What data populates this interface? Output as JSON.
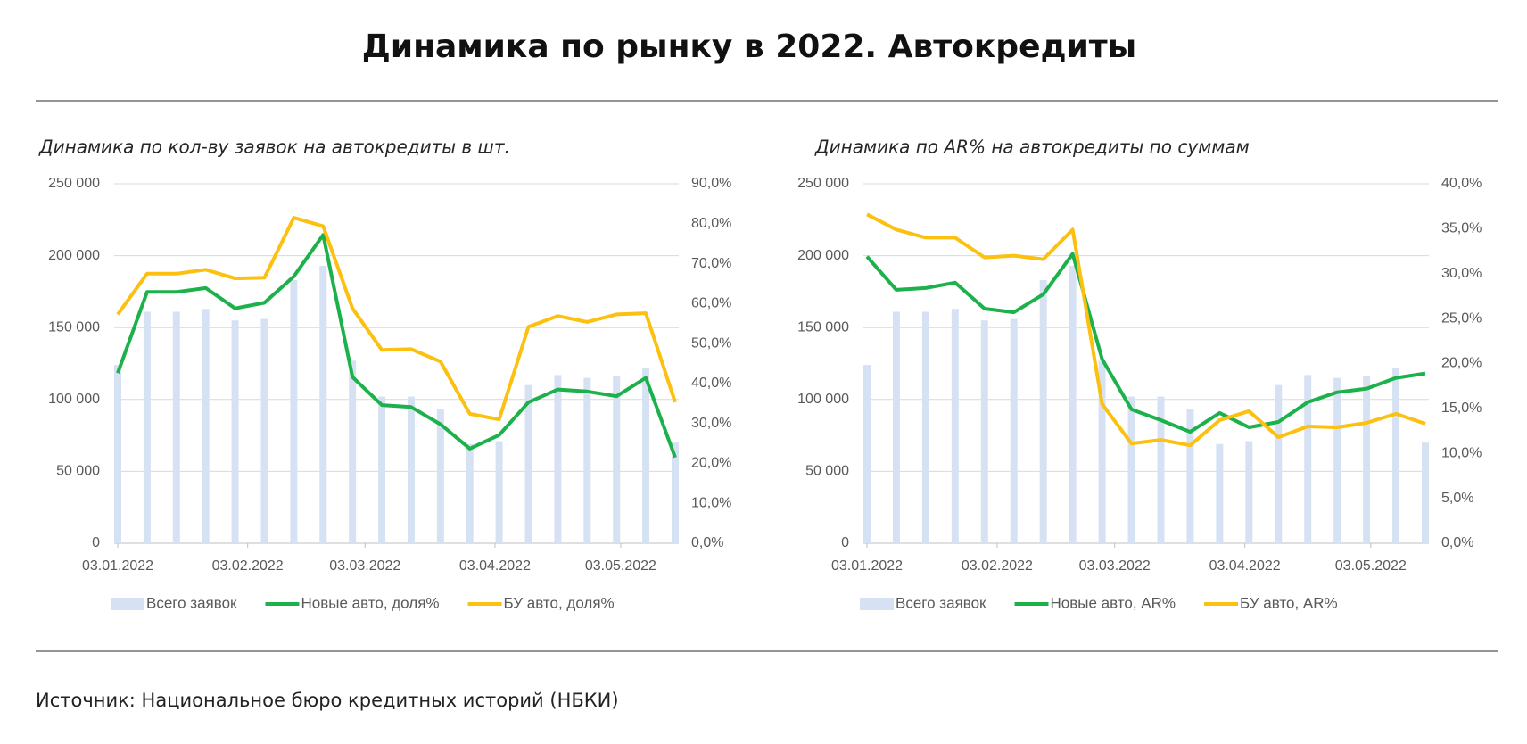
{
  "header": {
    "title": "Динамика по рынку в 2022. Автокредиты"
  },
  "chart_data": [
    {
      "type": "bar",
      "title": "Динамика по кол-ву заявок на автокредиты в шт.",
      "x": [
        0,
        7,
        14,
        21,
        28,
        35,
        42,
        49,
        56,
        63,
        70,
        77,
        84,
        91,
        98,
        105,
        112,
        119,
        126,
        133
      ],
      "xlim": [
        0,
        133
      ],
      "xticks": [
        {
          "value": 0,
          "label": "03.01.2022"
        },
        {
          "value": 31,
          "label": "03.02.2022"
        },
        {
          "value": 59,
          "label": "03.03.2022"
        },
        {
          "value": 90,
          "label": "03.04.2022"
        },
        {
          "value": 120,
          "label": "03.05.2022"
        }
      ],
      "ylim": [
        0,
        250000
      ],
      "yticks": [
        0,
        {
          "value": 50000,
          "label": "50 000"
        },
        {
          "value": 100000,
          "label": "100 000"
        },
        {
          "value": 150000,
          "label": "150 000"
        },
        {
          "value": 200000,
          "label": "200 000"
        },
        {
          "value": 250000,
          "label": "250 000"
        }
      ],
      "y2lim": [
        0,
        90
      ],
      "y2ticks": [
        {
          "value": 0,
          "label": "0,0%"
        },
        {
          "value": 10,
          "label": "10,0%"
        },
        {
          "value": 20,
          "label": "20,0%"
        },
        {
          "value": 30,
          "label": "30,0%"
        },
        {
          "value": 40,
          "label": "40,0%"
        },
        {
          "value": 50,
          "label": "50,0%"
        },
        {
          "value": 60,
          "label": "60,0%"
        },
        {
          "value": 70,
          "label": "70,0%"
        },
        {
          "value": 80,
          "label": "80,0%"
        },
        {
          "value": 90,
          "label": "90,0%"
        }
      ],
      "grid": true,
      "series": [
        {
          "name": "Всего заявок",
          "type": "bar",
          "color": "#d6e2f3",
          "values": [
            124000,
            161000,
            161000,
            163000,
            155000,
            156000,
            183000,
            193000,
            127000,
            102000,
            102000,
            93000,
            69000,
            71000,
            110000,
            117000,
            115000,
            116000,
            122000,
            70000
          ]
        },
        {
          "name": "Новые авто, доля%",
          "type": "line",
          "axis": "y2",
          "color": "#1db14b",
          "values": [
            42.6,
            62.9,
            62.9,
            63.9,
            58.8,
            60.2,
            66.8,
            77.2,
            41.6,
            34.6,
            34.1,
            29.8,
            23.7,
            27.1,
            35.3,
            38.5,
            38.0,
            36.8,
            41.4,
            21.5
          ]
        },
        {
          "name": "БУ авто, доля%",
          "type": "line",
          "axis": "y2",
          "color": "#fcc010",
          "values": [
            57.3,
            67.5,
            67.5,
            68.5,
            66.3,
            66.5,
            81.5,
            79.4,
            58.8,
            48.4,
            48.6,
            45.5,
            32.4,
            31.0,
            54.2,
            56.9,
            55.4,
            57.3,
            57.6,
            35.3
          ]
        }
      ]
    },
    {
      "type": "bar",
      "title": "Динамика по AR% на автокредиты по суммам",
      "x": [
        0,
        7,
        14,
        21,
        28,
        35,
        42,
        49,
        56,
        63,
        70,
        77,
        84,
        91,
        98,
        105,
        112,
        119,
        126,
        133
      ],
      "xlim": [
        0,
        133
      ],
      "xticks": [
        {
          "value": 0,
          "label": "03.01.2022"
        },
        {
          "value": 31,
          "label": "03.02.2022"
        },
        {
          "value": 59,
          "label": "03.03.2022"
        },
        {
          "value": 90,
          "label": "03.04.2022"
        },
        {
          "value": 120,
          "label": "03.05.2022"
        }
      ],
      "ylim": [
        0,
        250000
      ],
      "yticks": [
        0,
        {
          "value": 50000,
          "label": "50 000"
        },
        {
          "value": 100000,
          "label": "100 000"
        },
        {
          "value": 150000,
          "label": "150 000"
        },
        {
          "value": 200000,
          "label": "200 000"
        },
        {
          "value": 250000,
          "label": "250 000"
        }
      ],
      "y2lim": [
        0,
        40
      ],
      "y2ticks": [
        {
          "value": 0,
          "label": "0,0%"
        },
        {
          "value": 5,
          "label": "5,0%"
        },
        {
          "value": 10,
          "label": "10,0%"
        },
        {
          "value": 15,
          "label": "15,0%"
        },
        {
          "value": 20,
          "label": "20,0%"
        },
        {
          "value": 25,
          "label": "25,0%"
        },
        {
          "value": 30,
          "label": "30,0%"
        },
        {
          "value": 35,
          "label": "35,0%"
        },
        {
          "value": 40,
          "label": "40,0%"
        }
      ],
      "grid": true,
      "series": [
        {
          "name": "Всего заявок",
          "type": "bar",
          "color": "#d6e2f3",
          "values": [
            124000,
            161000,
            161000,
            163000,
            155000,
            156000,
            183000,
            193000,
            127000,
            102000,
            102000,
            93000,
            69000,
            71000,
            110000,
            117000,
            115000,
            116000,
            122000,
            70000
          ]
        },
        {
          "name": "Новые авто, AR%",
          "type": "line",
          "axis": "y2",
          "color": "#1db14b",
          "values": [
            31.9,
            28.2,
            28.4,
            29.0,
            26.1,
            25.7,
            27.7,
            32.2,
            20.5,
            14.9,
            13.7,
            12.4,
            14.5,
            12.9,
            13.5,
            15.7,
            16.8,
            17.2,
            18.4,
            18.9
          ]
        },
        {
          "name": "БУ авто, AR%",
          "type": "line",
          "axis": "y2",
          "color": "#fcc010",
          "values": [
            36.6,
            34.9,
            34.0,
            34.0,
            31.8,
            32.0,
            31.6,
            34.9,
            15.5,
            11.1,
            11.5,
            10.9,
            13.7,
            14.7,
            11.8,
            13.0,
            12.9,
            13.4,
            14.4,
            13.3
          ]
        }
      ]
    }
  ],
  "footer": {
    "source": "Источник: Национальное бюро кредитных историй (НБКИ)"
  }
}
